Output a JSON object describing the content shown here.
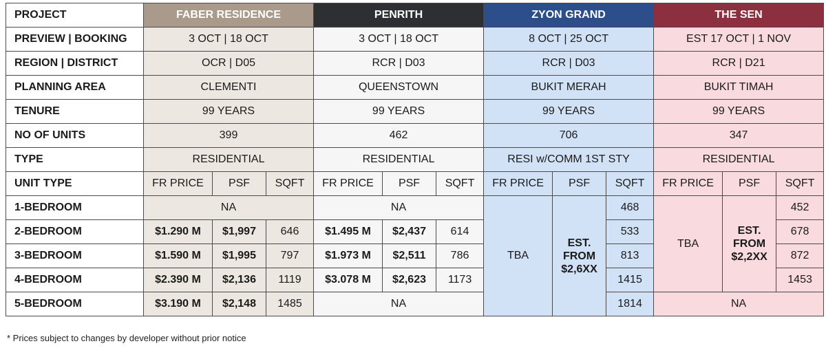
{
  "table": {
    "header": [
      "PROJECT",
      "FABER RESIDENCE",
      "PENRITH",
      "ZYON GRAND",
      "THE SEN"
    ],
    "rows": [
      [
        "PREVIEW | BOOKING",
        "3 OCT | 18 OCT",
        "3 OCT | 18 OCT",
        "8 OCT | 25 OCT",
        "EST 17 OCT | 1 NOV"
      ],
      [
        "REGION | DISTRICT",
        "OCR | D05",
        "RCR | D03",
        "RCR | D03",
        "RCR | D21"
      ],
      [
        "PLANNING AREA",
        "CLEMENTI",
        "QUEENSTOWN",
        "BUKIT MERAH",
        "BUKIT TIMAH"
      ],
      [
        "TENURE",
        "99 YEARS",
        "99 YEARS",
        "99 YEARS",
        "99 YEARS"
      ],
      [
        "NO OF UNITS",
        "399",
        "462",
        "706",
        "347"
      ],
      [
        "TYPE",
        "RESIDENTIAL",
        "RESIDENTIAL",
        "RESI w/COMM 1ST STY",
        "RESIDENTIAL"
      ]
    ],
    "unit_header": [
      "UNIT TYPE",
      "FR PRICE",
      "PSF",
      "SQFT",
      "FR PRICE",
      "PSF",
      "SQFT",
      "FR PRICE",
      "PSF",
      "SQFT",
      "FR PRICE",
      "PSF",
      "SQFT"
    ],
    "unit_rows": [
      [
        "1-BEDROOM",
        "NA",
        "NA",
        "TBA",
        "EST. FROM $2,6XX",
        "468",
        "TBA",
        "EST. FROM $2,2XX",
        "452"
      ],
      [
        "2-BEDROOM",
        "$1.290 M",
        "$1,997",
        "646",
        "$1.495 M",
        "$2,437",
        "614",
        "533",
        "678"
      ],
      [
        "3-BEDROOM",
        "$1.590 M",
        "$1,995",
        "797",
        "$1.973 M",
        "$2,511",
        "786",
        "813",
        "872"
      ],
      [
        "4-BEDROOM",
        "$2.390 M",
        "$2,136",
        "1119",
        "$3.078 M",
        "$2,623",
        "1173",
        "1415",
        "1453"
      ],
      [
        "5-BEDROOM",
        "$3.190 M",
        "$2,148",
        "1485",
        "NA",
        "1814",
        "NA"
      ]
    ]
  },
  "footnote": "* Prices subject to changes by developer without prior notice"
}
